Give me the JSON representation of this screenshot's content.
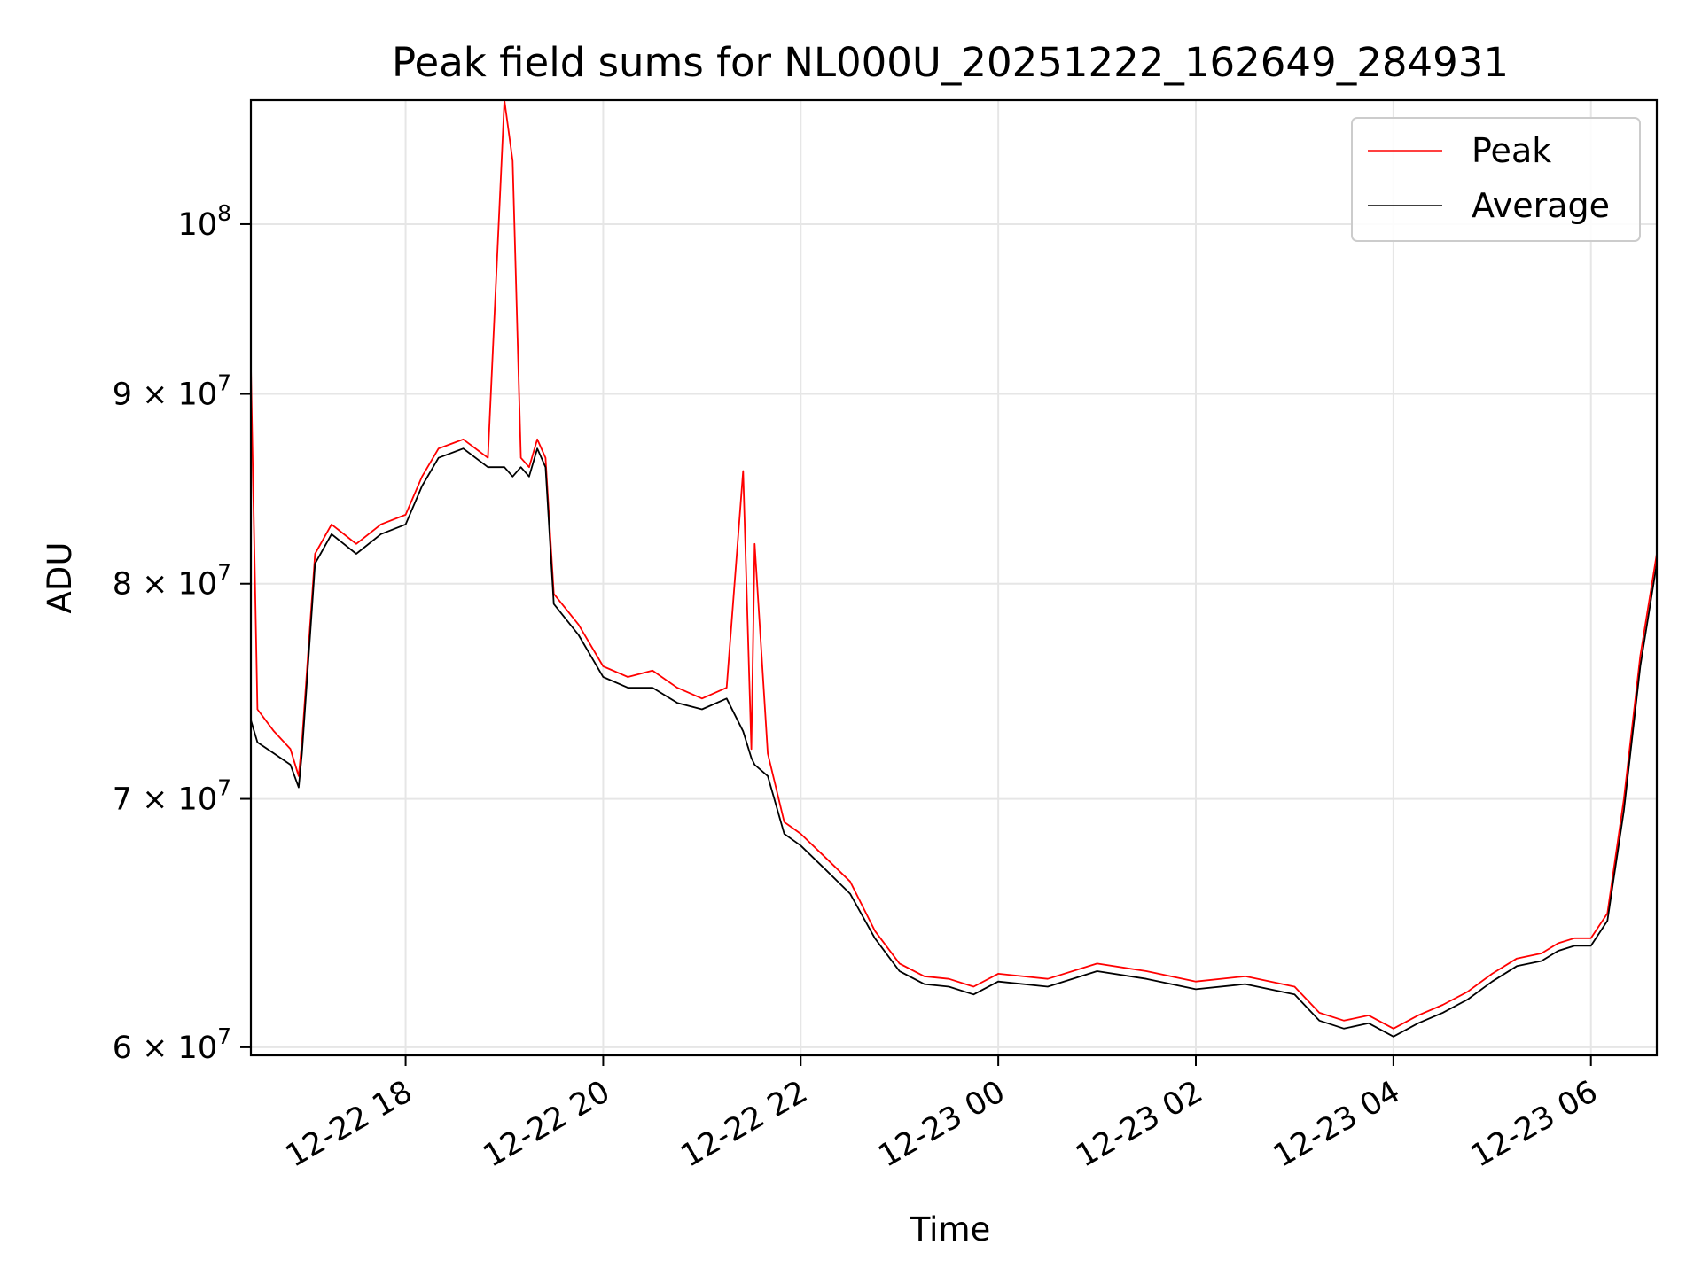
{
  "chart_data": {
    "type": "line",
    "title": "Peak field sums for NL000U_20251222_162649_284931",
    "xlabel": "Time",
    "ylabel": "ADU",
    "y_scale": "log",
    "xlim": [
      "2025-12-22 16:26",
      "2025-12-23 06:40"
    ],
    "ylim": [
      59700000,
      108000000
    ],
    "grid": true,
    "legend": "top-right",
    "x_ticks": [
      {
        "value": "2025-12-22 18:00",
        "label": "12-22 18"
      },
      {
        "value": "2025-12-22 20:00",
        "label": "12-22 20"
      },
      {
        "value": "2025-12-22 22:00",
        "label": "12-22 22"
      },
      {
        "value": "2025-12-23 00:00",
        "label": "12-23 00"
      },
      {
        "value": "2025-12-23 02:00",
        "label": "12-23 02"
      },
      {
        "value": "2025-12-23 04:00",
        "label": "12-23 04"
      },
      {
        "value": "2025-12-23 06:00",
        "label": "12-23 06"
      }
    ],
    "y_ticks": [
      {
        "value": 60000000,
        "base": "6 × 10",
        "exp": "7"
      },
      {
        "value": 70000000,
        "base": "7 × 10",
        "exp": "7"
      },
      {
        "value": 80000000,
        "base": "8 × 10",
        "exp": "7"
      },
      {
        "value": 90000000,
        "base": "9 × 10",
        "exp": "7"
      },
      {
        "value": 100000000,
        "base": "10",
        "exp": "8"
      }
    ],
    "x": [
      "2025-12-22 16:26",
      "2025-12-22 16:30",
      "2025-12-22 16:40",
      "2025-12-22 16:50",
      "2025-12-22 16:55",
      "2025-12-22 16:57",
      "2025-12-22 17:05",
      "2025-12-22 17:15",
      "2025-12-22 17:30",
      "2025-12-22 17:45",
      "2025-12-22 18:00",
      "2025-12-22 18:10",
      "2025-12-22 18:20",
      "2025-12-22 18:35",
      "2025-12-22 18:50",
      "2025-12-22 19:00",
      "2025-12-22 19:05",
      "2025-12-22 19:10",
      "2025-12-22 19:15",
      "2025-12-22 19:20",
      "2025-12-22 19:25",
      "2025-12-22 19:30",
      "2025-12-22 19:45",
      "2025-12-22 20:00",
      "2025-12-22 20:15",
      "2025-12-22 20:30",
      "2025-12-22 20:45",
      "2025-12-22 21:00",
      "2025-12-22 21:15",
      "2025-12-22 21:25",
      "2025-12-22 21:30",
      "2025-12-22 21:32",
      "2025-12-22 21:40",
      "2025-12-22 21:50",
      "2025-12-22 22:00",
      "2025-12-22 22:15",
      "2025-12-22 22:30",
      "2025-12-22 22:45",
      "2025-12-22 23:00",
      "2025-12-22 23:15",
      "2025-12-22 23:30",
      "2025-12-22 23:45",
      "2025-12-23 00:00",
      "2025-12-23 00:30",
      "2025-12-23 01:00",
      "2025-12-23 01:30",
      "2025-12-23 02:00",
      "2025-12-23 02:30",
      "2025-12-23 03:00",
      "2025-12-23 03:15",
      "2025-12-23 03:30",
      "2025-12-23 03:45",
      "2025-12-23 04:00",
      "2025-12-23 04:15",
      "2025-12-23 04:30",
      "2025-12-23 04:45",
      "2025-12-23 05:00",
      "2025-12-23 05:15",
      "2025-12-23 05:30",
      "2025-12-23 05:40",
      "2025-12-23 05:50",
      "2025-12-23 06:00",
      "2025-12-23 06:10",
      "2025-12-23 06:20",
      "2025-12-23 06:30",
      "2025-12-23 06:40"
    ],
    "series": [
      {
        "name": "Peak",
        "color": "#ff0000",
        "values": [
          91500000,
          74000000,
          73000000,
          72200000,
          71000000,
          72500000,
          81500000,
          83000000,
          82000000,
          83000000,
          83500000,
          85500000,
          87000000,
          87500000,
          86500000,
          108000000,
          104000000,
          86500000,
          86000000,
          87500000,
          86500000,
          79500000,
          78000000,
          76000000,
          75500000,
          75800000,
          75000000,
          74500000,
          75000000,
          85800000,
          72200000,
          82000000,
          72000000,
          69000000,
          68500000,
          67500000,
          66500000,
          64500000,
          63200000,
          62700000,
          62600000,
          62300000,
          62800000,
          62600000,
          63200000,
          62900000,
          62500000,
          62700000,
          62300000,
          61300000,
          61000000,
          61200000,
          60700000,
          61200000,
          61600000,
          62100000,
          62800000,
          63400000,
          63600000,
          64000000,
          64200000,
          64200000,
          65200000,
          70000000,
          76500000,
          81500000
        ]
      },
      {
        "name": "Average",
        "color": "#000000",
        "values": [
          73500000,
          72500000,
          72000000,
          71500000,
          70500000,
          72000000,
          81000000,
          82500000,
          81500000,
          82500000,
          83000000,
          85000000,
          86500000,
          87000000,
          86000000,
          86000000,
          85500000,
          86000000,
          85500000,
          87000000,
          86000000,
          79000000,
          77500000,
          75500000,
          75000000,
          75000000,
          74300000,
          74000000,
          74500000,
          73000000,
          71800000,
          71500000,
          71000000,
          68500000,
          68000000,
          67000000,
          66000000,
          64200000,
          62900000,
          62400000,
          62300000,
          62000000,
          62500000,
          62300000,
          62900000,
          62600000,
          62200000,
          62400000,
          62000000,
          61000000,
          60700000,
          60900000,
          60400000,
          60900000,
          61300000,
          61800000,
          62500000,
          63100000,
          63300000,
          63700000,
          63900000,
          63900000,
          64900000,
          69500000,
          76000000,
          81000000
        ]
      }
    ]
  }
}
